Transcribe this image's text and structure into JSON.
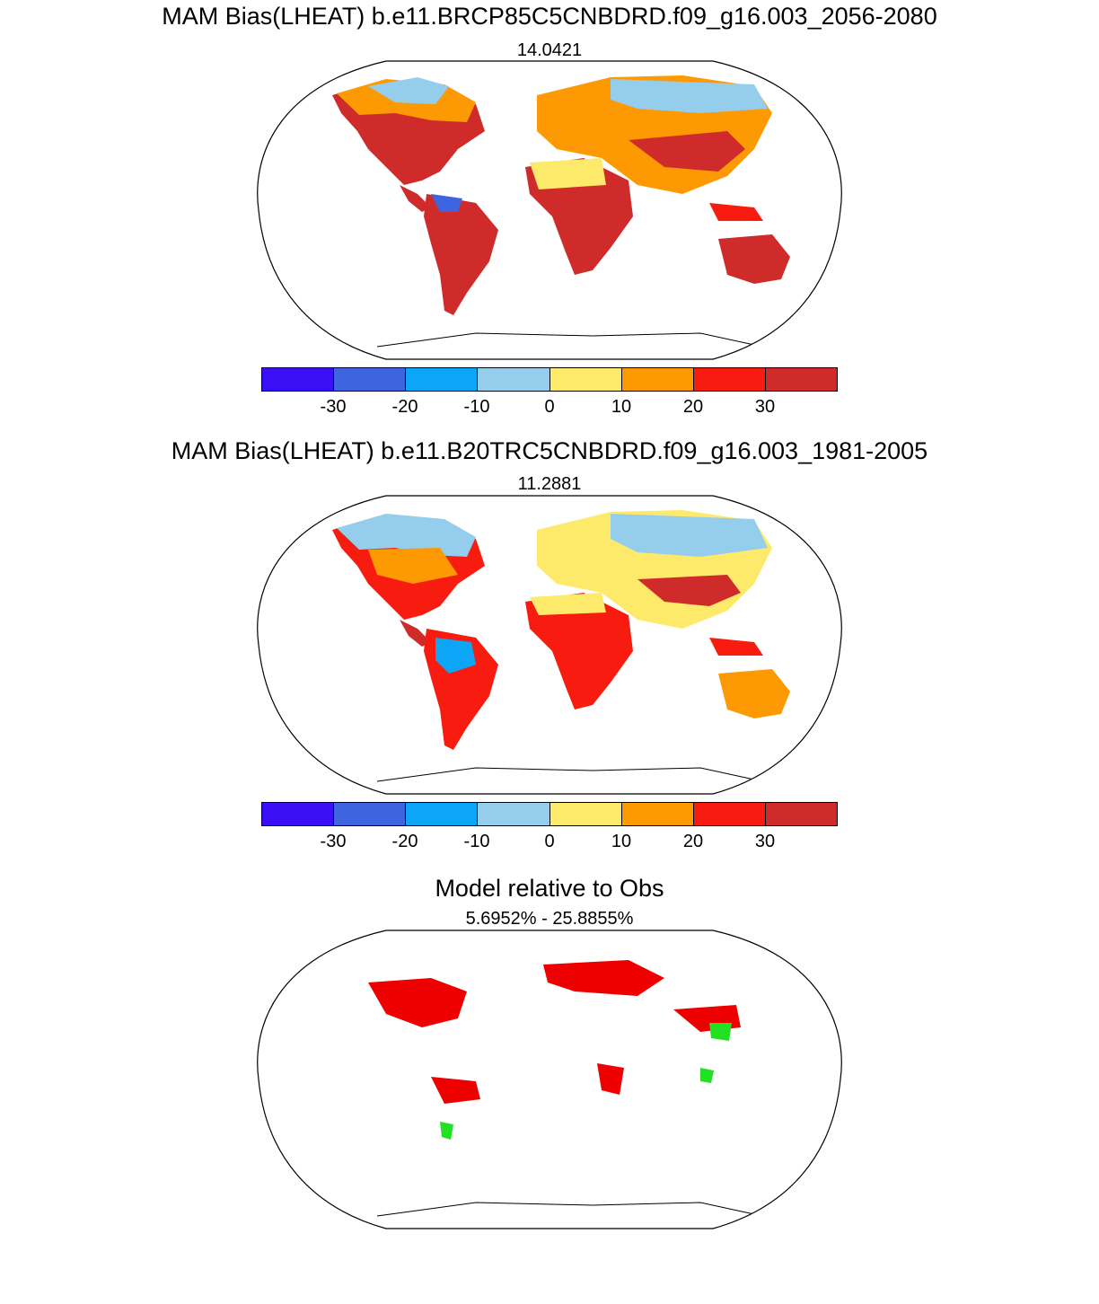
{
  "panels": [
    {
      "title": "MAM Bias(LHEAT) b.e11.BRCP85C5CNBDRD.f09_g16.003_2056-2080",
      "subtitle": "14.0421"
    },
    {
      "title": "MAM Bias(LHEAT) b.e11.B20TRC5CNBDRD.f09_g16.003_1981-2005",
      "subtitle": "11.2881"
    },
    {
      "title": "Model relative to Obs",
      "subtitle": "5.6952% - 25.8855%"
    }
  ],
  "colorbar": {
    "colors": [
      "#3b0ff5",
      "#3e64e0",
      "#0da6f7",
      "#95cdec",
      "#fde96a",
      "#fd9a03",
      "#f81b10",
      "#d02b2b"
    ],
    "labels": [
      "-30",
      "-20",
      "-10",
      "0",
      "10",
      "20",
      "30"
    ]
  },
  "difference_colors": {
    "worse": "#ee0000",
    "better": "#22e022"
  },
  "chart_data": {
    "type": "heatmap",
    "projection": "robinson",
    "variable": "LHEAT",
    "season": "MAM",
    "levels": [
      -30,
      -20,
      -10,
      0,
      10,
      20,
      30
    ],
    "maps": [
      {
        "title": "MAM Bias(LHEAT) b.e11.BRCP85C5CNBDRD.f09_g16.003_2056-2080",
        "value": 14.0421
      },
      {
        "title": "MAM Bias(LHEAT) b.e11.B20TRC5CNBDRD.f09_g16.003_1981-2005",
        "value": 11.2881
      },
      {
        "title": "Model relative to Obs",
        "range_percent": [
          5.6952,
          25.8855
        ]
      }
    ]
  }
}
